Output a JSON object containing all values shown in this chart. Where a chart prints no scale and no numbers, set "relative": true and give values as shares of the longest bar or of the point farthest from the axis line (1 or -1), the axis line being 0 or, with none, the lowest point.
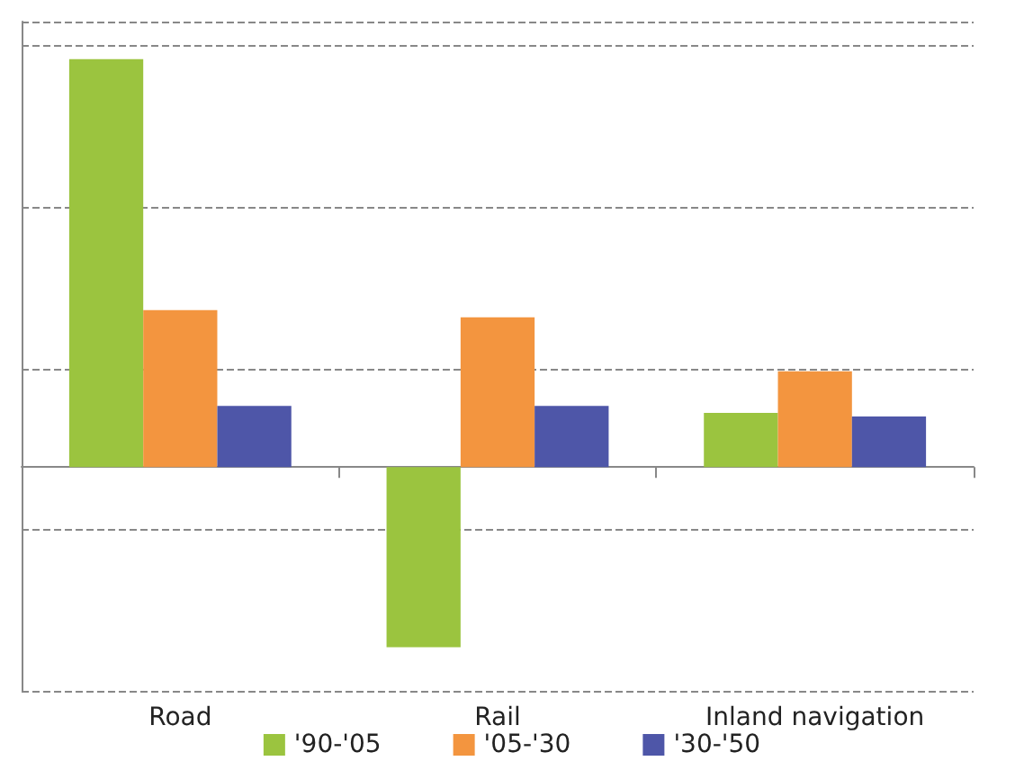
{
  "chart_data": {
    "type": "bar",
    "relative": true,
    "categories": [
      "Road",
      "Rail",
      "Inland navigation"
    ],
    "series": [
      {
        "name": "'90-'05",
        "color": "#9bc43f",
        "values": [
          1,
          -0.442,
          0.133
        ]
      },
      {
        "name": "'05-'30",
        "color": "#f3953f",
        "values": [
          0.385,
          0.367,
          0.235
        ]
      },
      {
        "name": "'30-'50",
        "color": "#4e56a8",
        "values": [
          0.15,
          0.15,
          0.124
        ]
      }
    ],
    "grid": "y",
    "legend": "bottom"
  }
}
